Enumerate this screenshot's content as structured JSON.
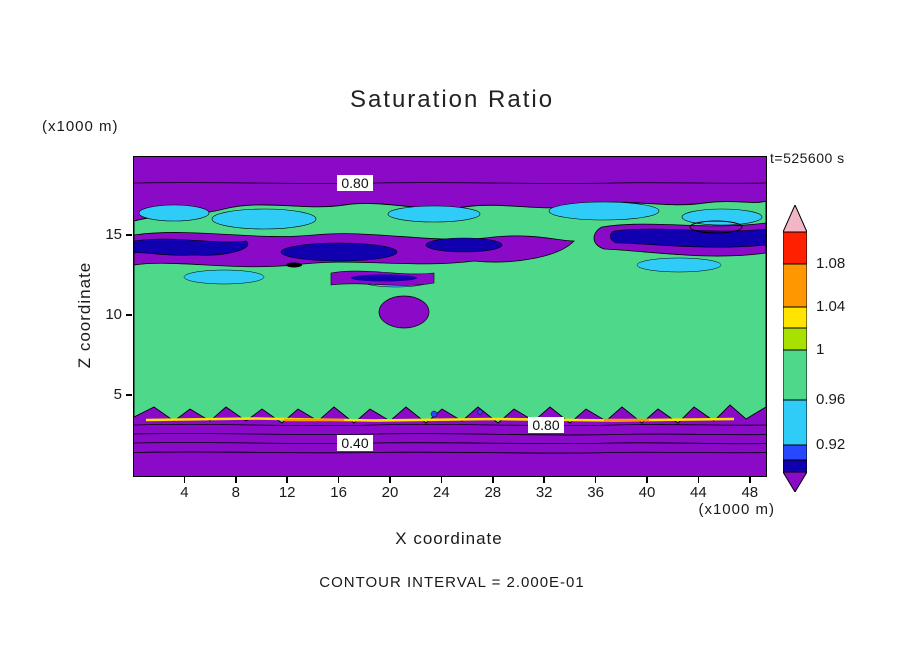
{
  "title": "Saturation Ratio",
  "time_stamp": "t=525600 s",
  "axes": {
    "y": {
      "label": "Z coordinate",
      "unit": "(x1000 m)",
      "ticks": [
        15,
        10,
        5
      ]
    },
    "x": {
      "label": "X coordinate",
      "unit": "(x1000 m)",
      "ticks": [
        4,
        8,
        12,
        16,
        20,
        24,
        28,
        32,
        36,
        40,
        44,
        48
      ]
    }
  },
  "footer": "CONTOUR INTERVAL = 2.000E-01",
  "colorbar": {
    "arrow_top_color": "#f2b6c6",
    "arrow_bottom_color": "#8a0ac8",
    "segment_colors": [
      "#ff2000",
      "#ff9800",
      "#ffe400",
      "#a8e000",
      "#4ed88a",
      "#30ccf8",
      "#2848ff",
      "#1000b0"
    ],
    "labels": [
      "1.08",
      "1.04",
      "1",
      "0.96",
      "0.92"
    ]
  },
  "contour_labels": [
    {
      "text": "0.80"
    },
    {
      "text": "0.40"
    },
    {
      "text": "0.80"
    }
  ],
  "field_colors": {
    "background": "#8a0ac8",
    "main": "#4ed88a",
    "cyan": "#30ccf8",
    "navy": "#1000b0",
    "blue": "#2848ff",
    "yellow": "#ffe400",
    "orange": "#ff9800"
  },
  "chart_data": {
    "type": "heatmap",
    "subtype": "filled-contour-plot",
    "title": "Saturation Ratio",
    "time_label": "t=525600 s",
    "xlabel": "X coordinate",
    "ylabel": "Z coordinate",
    "x_unit": "(x1000 m)",
    "y_unit": "(x1000 m)",
    "x_range": [
      0,
      49
    ],
    "y_range": [
      0,
      20
    ],
    "x_ticks": [
      4,
      8,
      12,
      16,
      20,
      24,
      28,
      32,
      36,
      40,
      44,
      48
    ],
    "y_ticks": [
      5,
      10,
      15
    ],
    "contour_interval": "2.000E-01",
    "colorbar_tick_labels": [
      1.08,
      1.04,
      1,
      0.96,
      0.92
    ],
    "color_scale_top_to_bottom": [
      "#f2b6c6",
      "#ff2000",
      "#ff9800",
      "#ffe400",
      "#a8e000",
      "#4ed88a",
      "#30ccf8",
      "#2848ff",
      "#1000b0",
      "#8a0ac8"
    ],
    "labeled_contour_lines": [
      {
        "value": 0.8,
        "location": "upper boundary band, z ~ 18.5"
      },
      {
        "value": 0.4,
        "location": "lower boundary band, z ~ 2.2"
      },
      {
        "value": 0.8,
        "location": "lower boundary band, z ~ 3.2"
      }
    ],
    "field_description": "Saturation ratio near 1 (green) through most of the interior (z ~ 4-13), low values (purple, < 0.9) in bands along the top (z > 16) and bottom (z < 3) boundaries, cyan/blue/dark-blue low-saturation streaks around z ~ 13-15, thin yellow/orange high-saturation line near z ~ 3, and ragged green fingers reaching down to the bottom band.",
    "legend_position": "right vertical colorbar with arrow caps",
    "grid": false
  }
}
